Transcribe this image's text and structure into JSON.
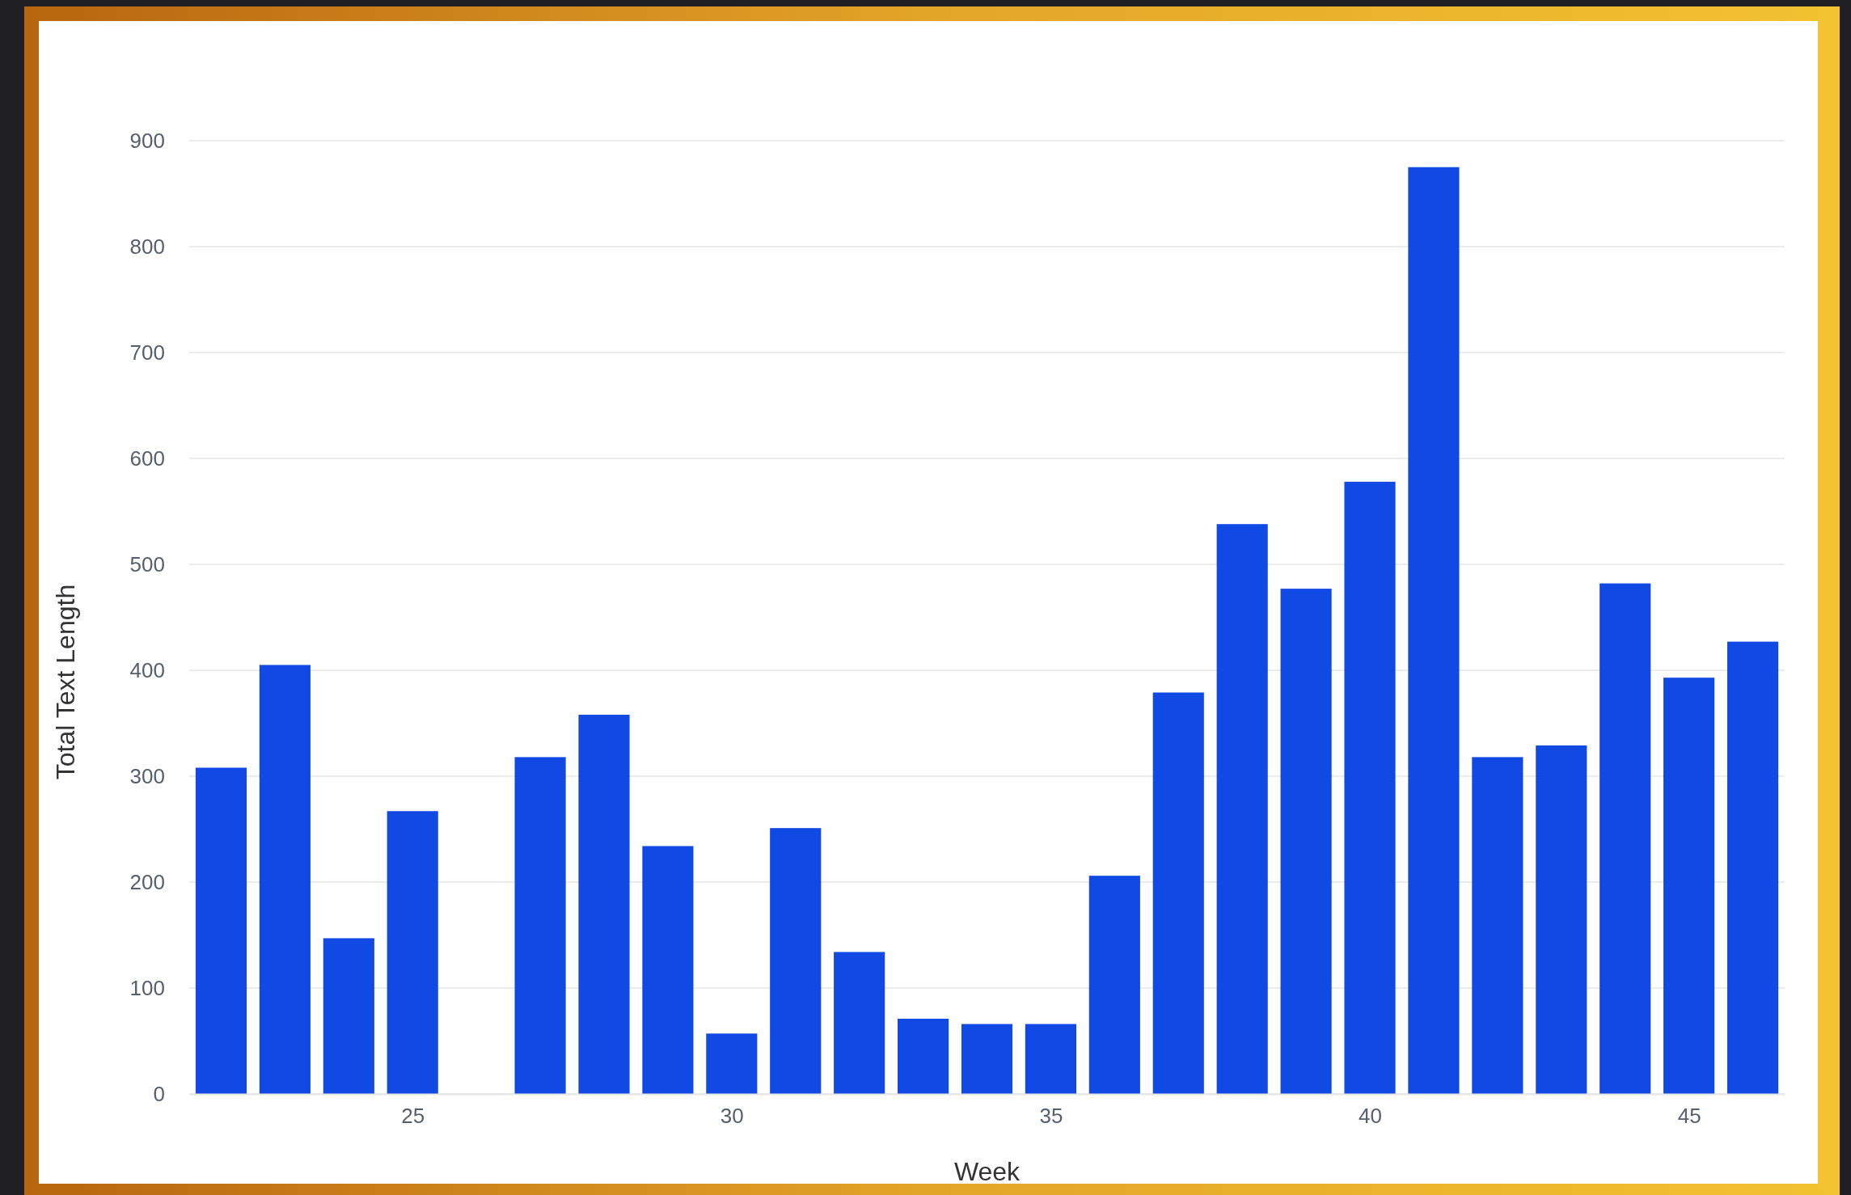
{
  "chart_data": {
    "type": "bar",
    "xlabel": "Week",
    "ylabel": "Total Text Length",
    "x": [
      22,
      23,
      24,
      25,
      27,
      28,
      29,
      30,
      31,
      32,
      33,
      34,
      35,
      36,
      37,
      38,
      39,
      40,
      41,
      42,
      43,
      44,
      45,
      46
    ],
    "values": [
      308,
      405,
      147,
      267,
      318,
      358,
      234,
      57,
      251,
      134,
      71,
      66,
      66,
      206,
      379,
      538,
      477,
      578,
      875,
      318,
      329,
      482,
      393,
      427
    ],
    "color": "#1049e3",
    "xlim": [
      21.5,
      46.5
    ],
    "xticks": [
      25,
      30,
      35,
      40,
      45
    ],
    "ylim": [
      0,
      900
    ],
    "yticks": [
      0,
      100,
      200,
      300,
      400,
      500,
      600,
      700,
      800,
      900
    ],
    "grid": "y"
  }
}
